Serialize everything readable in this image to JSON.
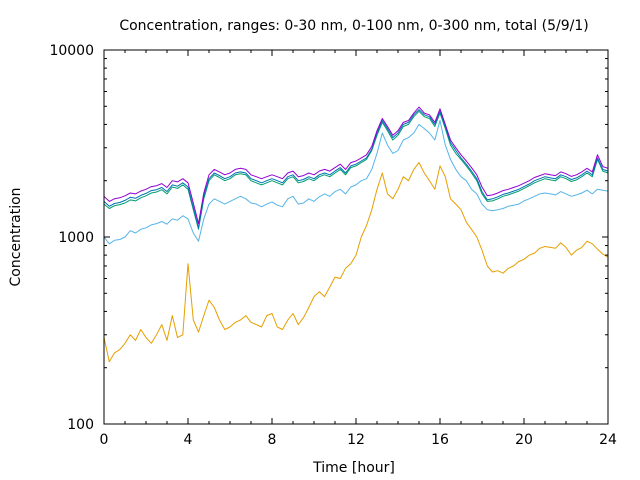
{
  "chart_data": {
    "type": "line",
    "title": "Concentration, ranges: 0-30 nm, 0-100 nm, 0-300 nm, total (5/9/1)",
    "xlabel": "Time [hour]",
    "ylabel": "Concentration",
    "xlim": [
      0,
      24
    ],
    "ylim": [
      100,
      10000
    ],
    "yscale": "log",
    "grid": false,
    "legend": "none",
    "x_ticks": [
      "0",
      "4",
      "8",
      "12",
      "16",
      "20",
      "24"
    ],
    "x_tick_values": [
      0,
      4,
      8,
      12,
      16,
      20,
      24
    ],
    "y_ticks": [
      "100",
      "1000",
      "10000"
    ],
    "y_tick_values": [
      100,
      1000,
      10000
    ],
    "x": [
      0,
      0.25,
      0.5,
      0.75,
      1,
      1.25,
      1.5,
      1.75,
      2,
      2.25,
      2.5,
      2.75,
      3,
      3.25,
      3.5,
      3.75,
      4,
      4.25,
      4.5,
      4.75,
      5,
      5.25,
      5.5,
      5.75,
      6,
      6.25,
      6.5,
      6.75,
      7,
      7.25,
      7.5,
      7.75,
      8,
      8.25,
      8.5,
      8.75,
      9,
      9.25,
      9.5,
      9.75,
      10,
      10.25,
      10.5,
      10.75,
      11,
      11.25,
      11.5,
      11.75,
      12,
      12.25,
      12.5,
      12.75,
      13,
      13.25,
      13.5,
      13.75,
      14,
      14.25,
      14.5,
      14.75,
      15,
      15.25,
      15.5,
      15.75,
      16,
      16.25,
      16.5,
      16.75,
      17,
      17.25,
      17.5,
      17.75,
      18,
      18.25,
      18.5,
      18.75,
      19,
      19.25,
      19.5,
      19.75,
      20,
      20.25,
      20.5,
      20.75,
      21,
      21.25,
      21.5,
      21.75,
      22,
      22.25,
      22.5,
      22.75,
      23,
      23.25,
      23.5,
      23.75,
      24
    ],
    "series": [
      {
        "color": "#e69f00",
        "values": [
          290,
          215,
          240,
          250,
          270,
          300,
          280,
          320,
          290,
          270,
          300,
          340,
          280,
          380,
          290,
          300,
          720,
          360,
          310,
          380,
          460,
          420,
          360,
          320,
          330,
          350,
          360,
          380,
          350,
          340,
          330,
          380,
          390,
          330,
          320,
          360,
          390,
          340,
          370,
          420,
          480,
          510,
          480,
          540,
          610,
          600,
          680,
          720,
          800,
          1000,
          1150,
          1400,
          1800,
          2200,
          1700,
          1600,
          1800,
          2100,
          2000,
          2300,
          2500,
          2200,
          2000,
          1800,
          2400,
          2100,
          1600,
          1500,
          1400,
          1200,
          1100,
          1000,
          850,
          700,
          650,
          660,
          640,
          680,
          700,
          740,
          760,
          800,
          820,
          870,
          890,
          880,
          870,
          930,
          880,
          800,
          850,
          880,
          950,
          920,
          860,
          810,
          780
        ]
      },
      {
        "color": "#56b4e9",
        "values": [
          1000,
          920,
          960,
          970,
          1000,
          1080,
          1050,
          1100,
          1120,
          1160,
          1180,
          1210,
          1170,
          1250,
          1230,
          1300,
          1250,
          1050,
          950,
          1250,
          1500,
          1600,
          1550,
          1500,
          1550,
          1600,
          1650,
          1600,
          1520,
          1500,
          1450,
          1500,
          1540,
          1480,
          1450,
          1600,
          1650,
          1500,
          1520,
          1600,
          1550,
          1640,
          1700,
          1650,
          1750,
          1800,
          1700,
          1850,
          1900,
          2000,
          2050,
          2300,
          2800,
          3600,
          3100,
          2800,
          2900,
          3300,
          3400,
          3600,
          4000,
          3800,
          3600,
          3300,
          4200,
          3100,
          2600,
          2300,
          2100,
          2000,
          1800,
          1700,
          1500,
          1400,
          1380,
          1400,
          1420,
          1460,
          1480,
          1500,
          1560,
          1600,
          1650,
          1700,
          1720,
          1700,
          1680,
          1750,
          1700,
          1650,
          1680,
          1720,
          1780,
          1700,
          1800,
          1780,
          1760
        ]
      },
      {
        "color": "#009e73",
        "values": [
          1500,
          1420,
          1470,
          1490,
          1520,
          1580,
          1560,
          1620,
          1660,
          1720,
          1740,
          1790,
          1700,
          1850,
          1820,
          1900,
          1800,
          1400,
          1100,
          1600,
          2000,
          2150,
          2080,
          2000,
          2050,
          2150,
          2180,
          2150,
          2000,
          1950,
          1900,
          1950,
          2000,
          1950,
          1900,
          2050,
          2100,
          1950,
          1980,
          2050,
          2000,
          2100,
          2150,
          2100,
          2200,
          2300,
          2150,
          2350,
          2400,
          2500,
          2600,
          2900,
          3500,
          4100,
          3700,
          3300,
          3500,
          3900,
          4000,
          4400,
          4700,
          4400,
          4300,
          3900,
          4600,
          3800,
          3100,
          2800,
          2600,
          2400,
          2200,
          2000,
          1700,
          1550,
          1560,
          1600,
          1650,
          1680,
          1720,
          1760,
          1820,
          1880,
          1950,
          2000,
          2050,
          2020,
          2000,
          2100,
          2050,
          1980,
          2020,
          2100,
          2200,
          2100,
          2600,
          2250,
          2200
        ]
      },
      {
        "color": "#0072b2",
        "values": [
          1550,
          1460,
          1510,
          1530,
          1570,
          1630,
          1610,
          1670,
          1710,
          1770,
          1790,
          1840,
          1750,
          1900,
          1870,
          1950,
          1850,
          1440,
          1120,
          1650,
          2050,
          2200,
          2130,
          2050,
          2100,
          2200,
          2230,
          2200,
          2050,
          2000,
          1950,
          2000,
          2050,
          2000,
          1950,
          2100,
          2150,
          2000,
          2030,
          2100,
          2050,
          2150,
          2200,
          2150,
          2250,
          2350,
          2200,
          2400,
          2450,
          2550,
          2650,
          2950,
          3600,
          4200,
          3800,
          3400,
          3600,
          4000,
          4100,
          4500,
          4800,
          4500,
          4400,
          4000,
          4700,
          3900,
          3200,
          2900,
          2650,
          2450,
          2250,
          2050,
          1750,
          1580,
          1600,
          1640,
          1690,
          1720,
          1760,
          1800,
          1860,
          1920,
          2000,
          2050,
          2100,
          2070,
          2050,
          2150,
          2100,
          2030,
          2070,
          2150,
          2250,
          2150,
          2650,
          2300,
          2250
        ]
      },
      {
        "color": "#9400d3",
        "values": [
          1650,
          1550,
          1600,
          1620,
          1660,
          1720,
          1700,
          1760,
          1800,
          1860,
          1880,
          1930,
          1840,
          2000,
          1970,
          2050,
          1950,
          1520,
          1180,
          1720,
          2150,
          2300,
          2230,
          2150,
          2200,
          2300,
          2330,
          2300,
          2150,
          2100,
          2050,
          2100,
          2150,
          2100,
          2050,
          2200,
          2250,
          2100,
          2130,
          2200,
          2150,
          2250,
          2300,
          2250,
          2350,
          2450,
          2300,
          2500,
          2550,
          2650,
          2750,
          3050,
          3700,
          4300,
          3900,
          3500,
          3700,
          4100,
          4200,
          4600,
          4950,
          4600,
          4500,
          4100,
          4850,
          4000,
          3300,
          3000,
          2750,
          2550,
          2350,
          2150,
          1850,
          1660,
          1680,
          1720,
          1770,
          1800,
          1840,
          1880,
          1940,
          2000,
          2080,
          2130,
          2180,
          2150,
          2130,
          2230,
          2180,
          2110,
          2150,
          2230,
          2330,
          2230,
          2750,
          2380,
          2330
        ]
      }
    ]
  }
}
